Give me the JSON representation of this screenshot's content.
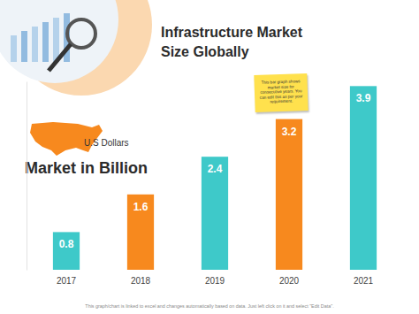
{
  "chart_data": {
    "type": "bar",
    "title": "Infrastructure Market Size Globally",
    "subtitle": "Market in Billion",
    "annotations": [
      "U.S Dollars",
      "This bar graph shows market size for consecutive years. You can edit this as per your requirement.",
      "This graph/chart is linked to excel and changes automatically based on data. Just left click on it and select \"Edit Data\"."
    ],
    "categories": [
      "2017",
      "2018",
      "2019",
      "2020",
      "2021"
    ],
    "values": [
      0.8,
      1.6,
      2.4,
      3.2,
      3.9
    ],
    "colors": [
      "#3ec9c9",
      "#f7891e",
      "#3ec9c9",
      "#f7891e",
      "#3ec9c9"
    ],
    "ylim": [
      0,
      4
    ],
    "data_labels": true,
    "tick_labels": "x"
  }
}
